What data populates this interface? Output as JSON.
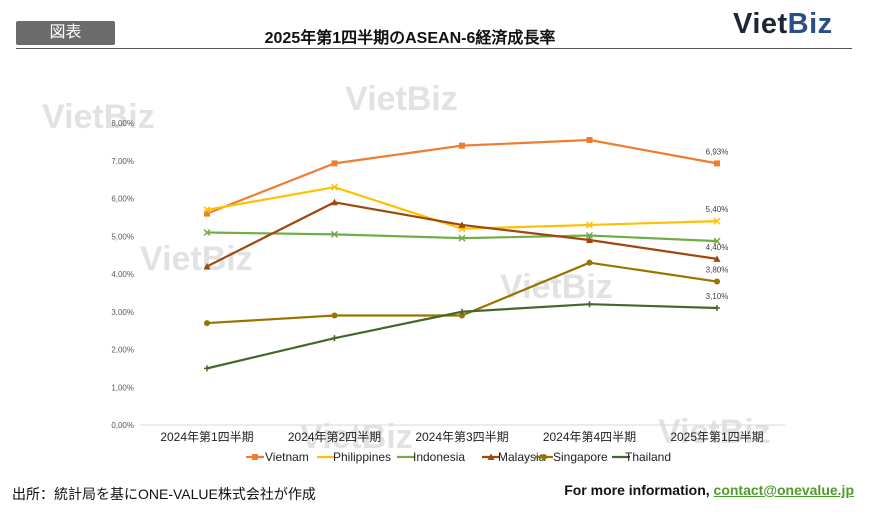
{
  "header": {
    "tag": "図表",
    "title": "2025年第1四半期のASEAN-6経済成長率",
    "logo_part1": "Viet",
    "logo_part2": "Biz"
  },
  "watermark": "VietBiz",
  "footer": {
    "source": "出所：統計局を基にONE-VALUE株式会社が作成",
    "info_prefix": "For more information, ",
    "email": "contact@onevalue.jp"
  },
  "colors": {
    "Vietnam": "#ed7d31",
    "Philippines": "#ffc000",
    "Indonesia": "#70ad47",
    "Malaysia": "#9e480e",
    "Singapore": "#997300",
    "Thailand": "#43682b"
  },
  "chart_data": {
    "type": "line",
    "categories": [
      "2024年第1四半期",
      "2024年第2四半期",
      "2024年第3四半期",
      "2024年第4四半期",
      "2025年第1四半期"
    ],
    "ylim": [
      0,
      8
    ],
    "yticks": [
      "0,00%",
      "1,00%",
      "2,00%",
      "3,00%",
      "4,00%",
      "5,00%",
      "6,00%",
      "7,00%",
      "8,00%"
    ],
    "grid": false,
    "legend": "bottom",
    "series": [
      {
        "name": "Vietnam",
        "values": [
          5.6,
          6.93,
          7.4,
          7.55,
          6.93
        ],
        "marker": "square",
        "last_label": "6,93%"
      },
      {
        "name": "Philippines",
        "values": [
          5.7,
          6.3,
          5.2,
          5.3,
          5.4
        ],
        "marker": "x",
        "last_label": "5,40%"
      },
      {
        "name": "Indonesia",
        "values": [
          5.1,
          5.05,
          4.95,
          5.02,
          4.87
        ],
        "marker": "x",
        "last_label": ""
      },
      {
        "name": "Malaysia",
        "values": [
          4.2,
          5.9,
          5.3,
          4.9,
          4.4
        ],
        "marker": "triangle",
        "last_label": "4,40%"
      },
      {
        "name": "Singapore",
        "values": [
          2.7,
          2.9,
          2.9,
          4.3,
          3.8
        ],
        "marker": "circle",
        "last_label": "3,80%"
      },
      {
        "name": "Thailand",
        "values": [
          1.5,
          2.3,
          3.0,
          3.2,
          3.1
        ],
        "marker": "plus",
        "last_label": "3,10%"
      }
    ]
  }
}
